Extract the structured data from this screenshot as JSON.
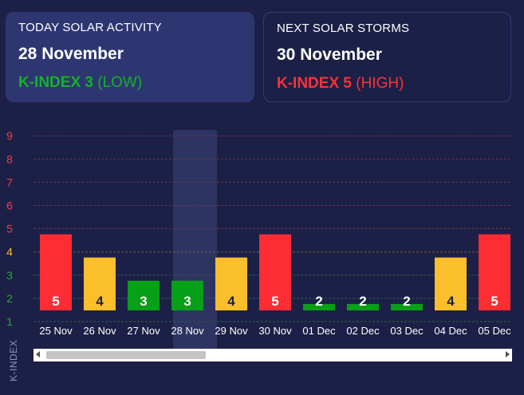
{
  "today": {
    "heading": "TODAY SOLAR ACTIVITY",
    "date": "28 November",
    "k_label": "K-INDEX 3",
    "level": "(LOW)",
    "color": "#13b227"
  },
  "next": {
    "heading": "NEXT SOLAR STORMS",
    "date": "30 November",
    "k_label": "K-INDEX 5",
    "level": "(HIGH)",
    "color": "#ff3138"
  },
  "chart_data": {
    "type": "bar",
    "ylabel": "K-INDEX",
    "ylim": [
      1,
      9
    ],
    "yticks": [
      1,
      2,
      3,
      4,
      5,
      6,
      7,
      8,
      9
    ],
    "grid": true,
    "highlighted_category": "28 Nov",
    "categories": [
      "25 Nov",
      "26 Nov",
      "27 Nov",
      "28 Nov",
      "29 Nov",
      "30 Nov",
      "01 Dec",
      "02 Dec",
      "03 Dec",
      "04 Dec",
      "05 Dec"
    ],
    "values": [
      5,
      4,
      3,
      3,
      4,
      5,
      2,
      2,
      2,
      4,
      5
    ],
    "level_colors": {
      "low": "#089f19",
      "moderate": "#fbbf2c",
      "high": "#fe2c33"
    },
    "tick_colors": {
      "low": "#20b02c",
      "moderate": "#fbbf2c",
      "high": "#ff3845"
    }
  }
}
